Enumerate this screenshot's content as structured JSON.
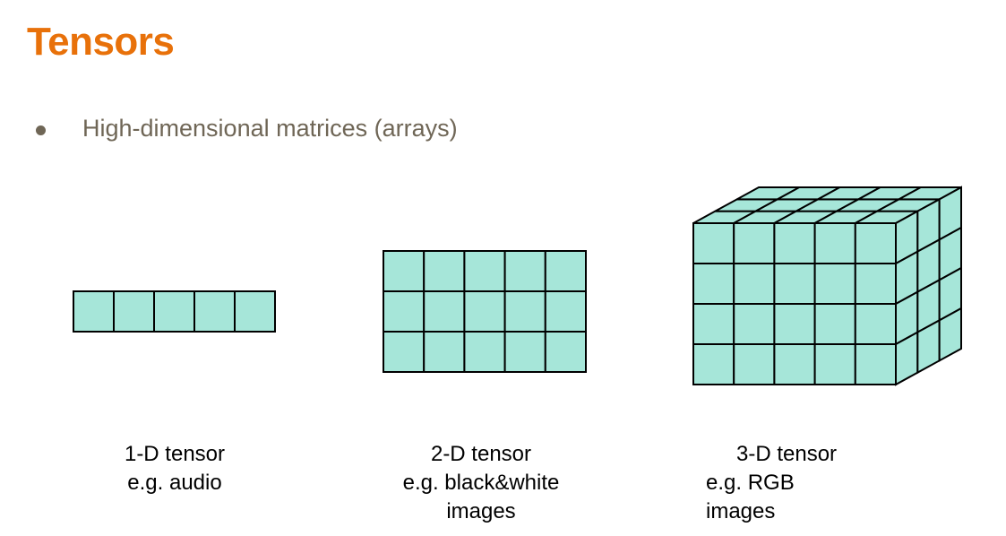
{
  "slide": {
    "title": "Tensors",
    "bullet": "High-dimensional matrices (arrays)"
  },
  "colors": {
    "title": "#e8710a",
    "bullet_text": "#6f6656",
    "cell_fill": "#a6e6d9",
    "cell_stroke": "#000000"
  },
  "diagrams": {
    "tensor_1d": {
      "cols": 5,
      "caption_title": "1-D tensor",
      "caption_line2": "e.g. audio",
      "caption_line3": ""
    },
    "tensor_2d": {
      "rows": 3,
      "cols": 5,
      "caption_title": "2-D tensor",
      "caption_line2": "e.g. black&white",
      "caption_line3": "images"
    },
    "tensor_3d": {
      "rows": 4,
      "cols": 5,
      "depth": 3,
      "caption_title": "3-D tensor",
      "caption_line2": "e.g. RGB",
      "caption_line3": "images"
    }
  }
}
